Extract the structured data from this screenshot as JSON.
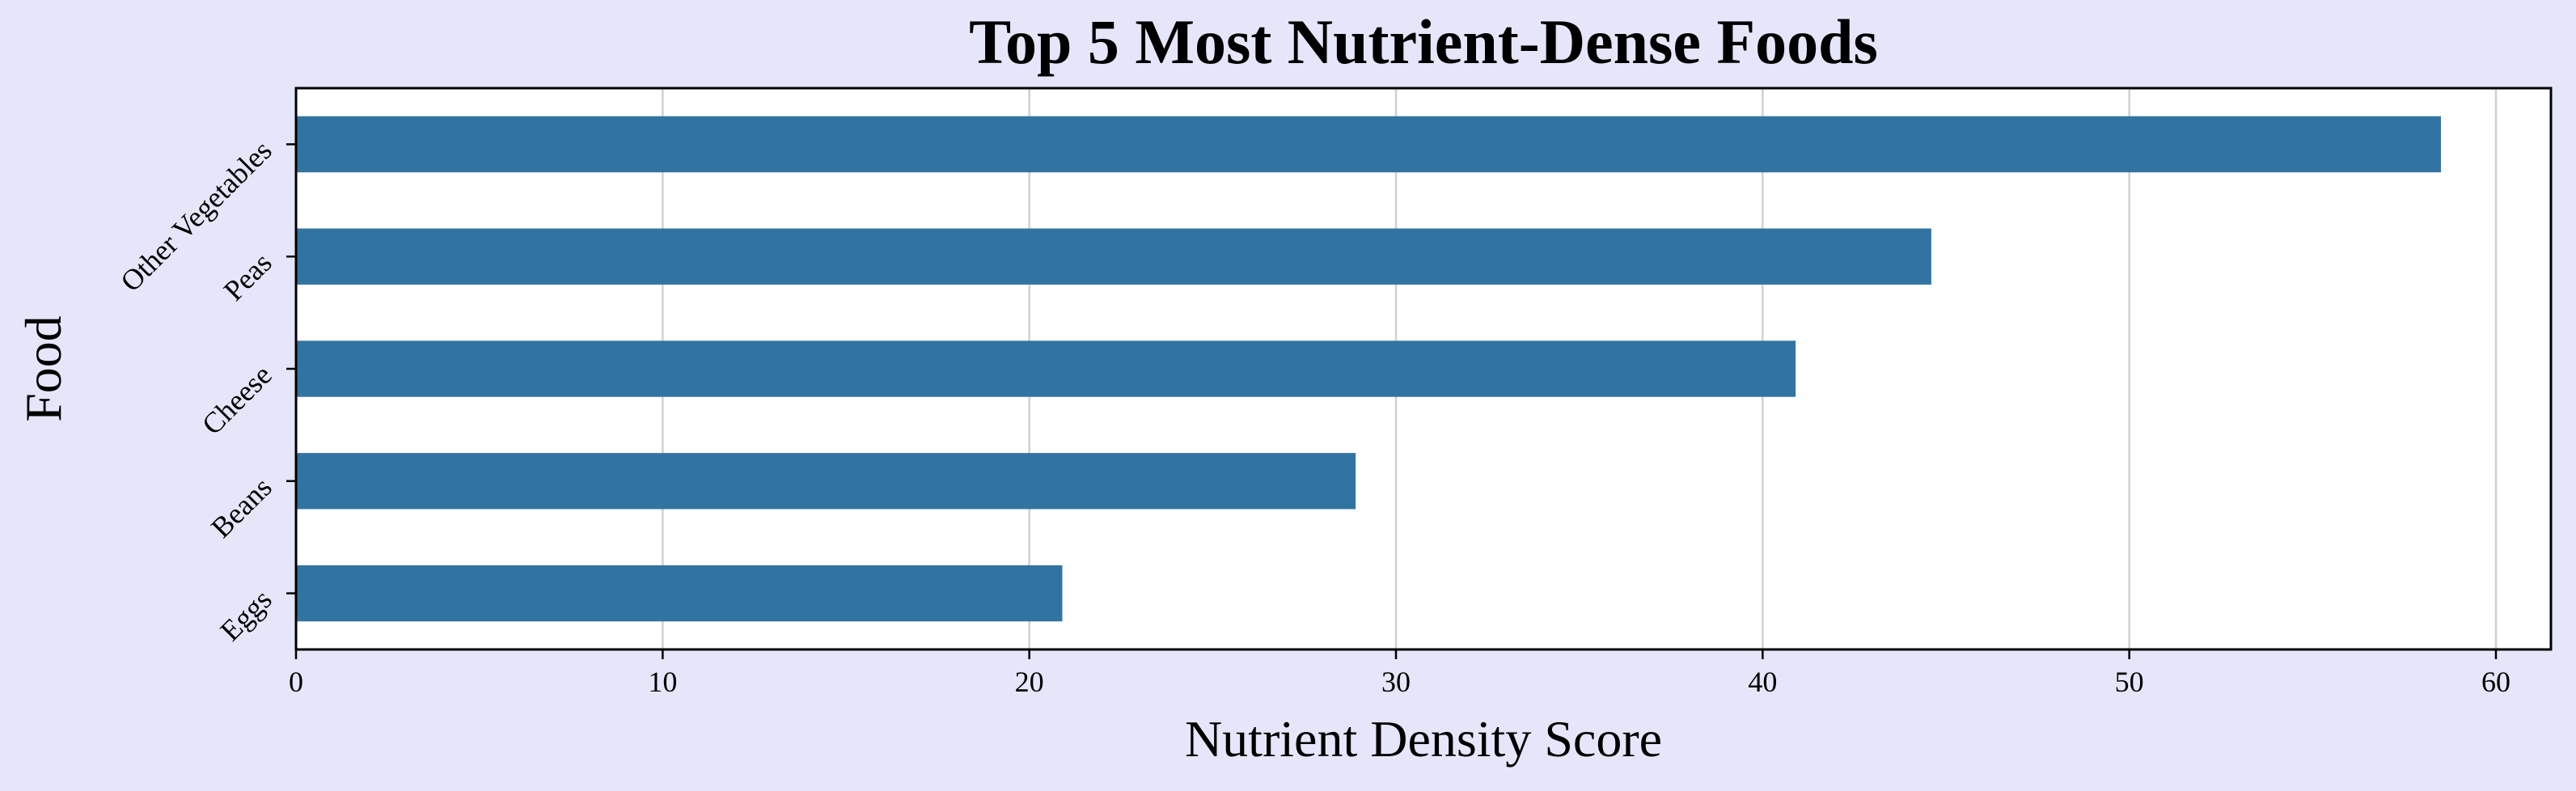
{
  "chart_data": {
    "type": "bar",
    "orientation": "horizontal",
    "title": "Top 5 Most Nutrient-Dense Foods",
    "xlabel": "Nutrient Density Score",
    "ylabel": "Food",
    "categories": [
      "Other Vegetables",
      "Peas",
      "Cheese",
      "Beans",
      "Eggs"
    ],
    "values": [
      58.5,
      44.6,
      40.9,
      28.9,
      20.9
    ],
    "xlim": [
      0,
      61.5
    ],
    "xticks": [
      0,
      10,
      20,
      30,
      40,
      50,
      60
    ],
    "grid": "x",
    "bar_color": "#3274a1",
    "background_color": "#e6e6fa",
    "plot_background": "#ffffff"
  }
}
